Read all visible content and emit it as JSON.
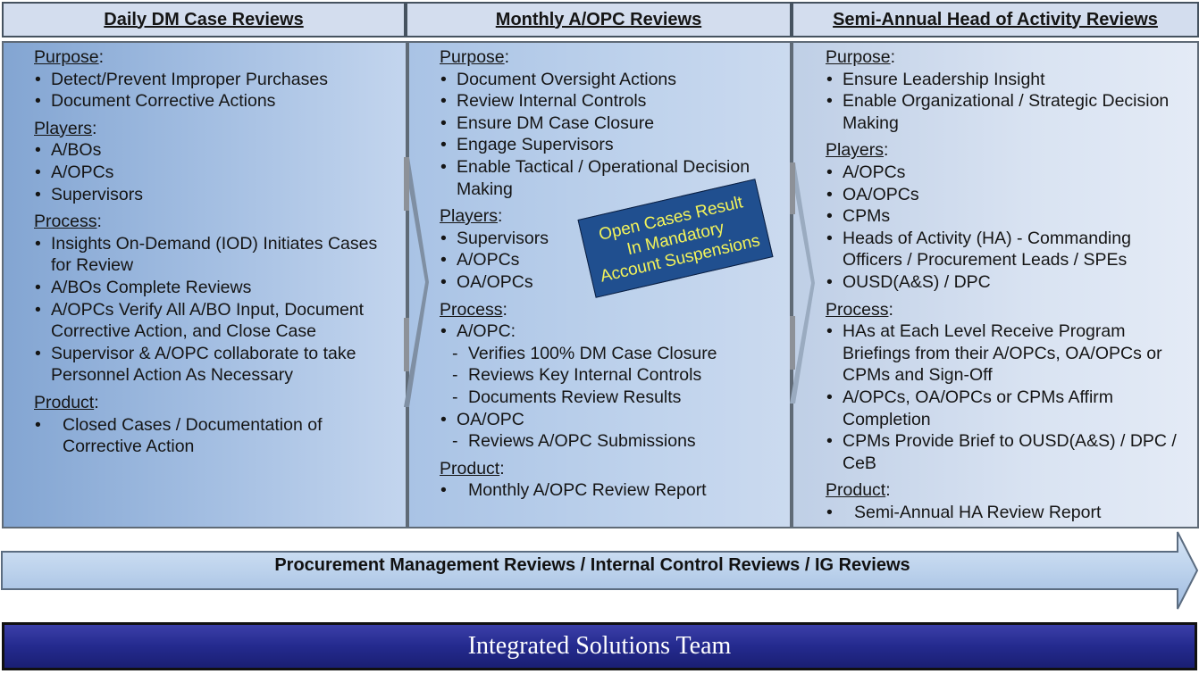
{
  "headers": [
    "Daily DM Case Reviews",
    "Monthly A/OPC Reviews",
    "Semi-Annual Head of Activity Reviews"
  ],
  "col1": {
    "purpose_title": "Purpose",
    "purpose": [
      "Detect/Prevent Improper Purchases",
      "Document Corrective Actions"
    ],
    "players_title": "Players",
    "players": [
      "A/BOs",
      "A/OPCs",
      "Supervisors"
    ],
    "process_title": "Process",
    "process": [
      "Insights On-Demand (IOD) Initiates Cases for Review",
      "A/BOs Complete Reviews",
      "A/OPCs Verify All A/BO Input, Document Corrective Action, and Close Case",
      "Supervisor & A/OPC collaborate to take Personnel Action As Necessary"
    ],
    "product_title": "Product",
    "product": [
      "Closed Cases / Documentation of Corrective Action"
    ]
  },
  "col2": {
    "purpose_title": "Purpose",
    "purpose": [
      "Document Oversight Actions",
      "Review Internal Controls",
      "Ensure DM Case Closure",
      "Engage Supervisors",
      "Enable Tactical / Operational Decision Making"
    ],
    "players_title": "Players",
    "players": [
      "Supervisors",
      "A/OPCs",
      "OA/OPCs"
    ],
    "process_title": "Process",
    "process_aopc": "A/OPC:",
    "process_aopc_items": [
      "Verifies 100% DM Case Closure",
      "Reviews Key Internal Controls",
      "Documents Review Results"
    ],
    "process_oaopc": "OA/OPC",
    "process_oaopc_items": [
      "Reviews A/OPC Submissions"
    ],
    "product_title": "Product",
    "product": [
      "Monthly A/OPC Review Report"
    ]
  },
  "col3": {
    "purpose_title": "Purpose",
    "purpose": [
      "Ensure Leadership Insight",
      "Enable Organizational / Strategic Decision Making"
    ],
    "players_title": "Players",
    "players": [
      "A/OPCs",
      "OA/OPCs",
      "CPMs",
      "Heads of Activity (HA) - Commanding Officers  / Procurement Leads / SPEs",
      "OUSD(A&S) / DPC"
    ],
    "process_title": "Process",
    "process": [
      "HAs at Each Level Receive Program Briefings from their A/OPCs, OA/OPCs or CPMs and Sign-Off",
      "A/OPCs, OA/OPCs or CPMs Affirm Completion",
      "CPMs Provide Brief to OUSD(A&S) / DPC / CeB"
    ],
    "product_title": "Product",
    "product": [
      "Semi-Annual HA Review Report"
    ]
  },
  "callout": [
    "Open Cases Result",
    "In Mandatory",
    "Account Suspensions"
  ],
  "arrow_text": "Procurement Management Reviews / Internal Control Reviews / IG Reviews",
  "team_bar": "Integrated Solutions Team",
  "colors": {
    "header_bg": "#d3ddee",
    "callout_bg": "#204f8f",
    "callout_text": "#f4f45a",
    "team_bar": "#242a8e",
    "arrow_fill": "#bcd2ec"
  }
}
